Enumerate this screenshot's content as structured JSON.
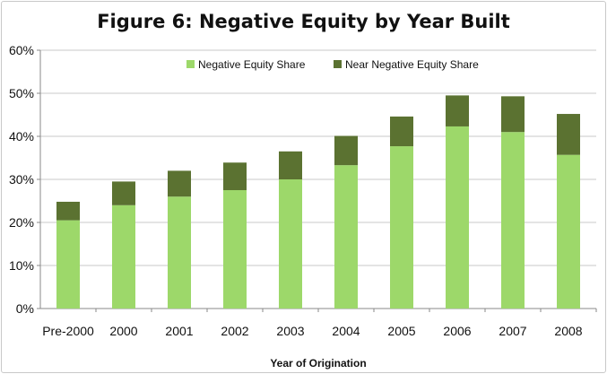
{
  "chart_data": {
    "type": "bar",
    "stacked": true,
    "title": "Figure 6: Negative Equity by Year Built",
    "xlabel": "Year of Origination",
    "ylabel": "",
    "ylim": [
      0,
      60
    ],
    "y_unit": "%",
    "yticks": [
      "0%",
      "10%",
      "20%",
      "30%",
      "40%",
      "50%",
      "60%"
    ],
    "grid": true,
    "legend_position": "top",
    "categories": [
      "Pre-2000",
      "2000",
      "2001",
      "2002",
      "2003",
      "2004",
      "2005",
      "2006",
      "2007",
      "2008"
    ],
    "series": [
      {
        "name": "Negative Equity Share",
        "color": "#9dd86a",
        "values": [
          20.5,
          24,
          26,
          27.5,
          30,
          33.3,
          37.7,
          42.3,
          41,
          35.7
        ]
      },
      {
        "name": "Near Negative Equity Share",
        "color": "#5b7231",
        "values": [
          4.3,
          5.5,
          6,
          6.4,
          6.5,
          6.8,
          6.9,
          7.2,
          8.3,
          9.5
        ]
      }
    ]
  }
}
